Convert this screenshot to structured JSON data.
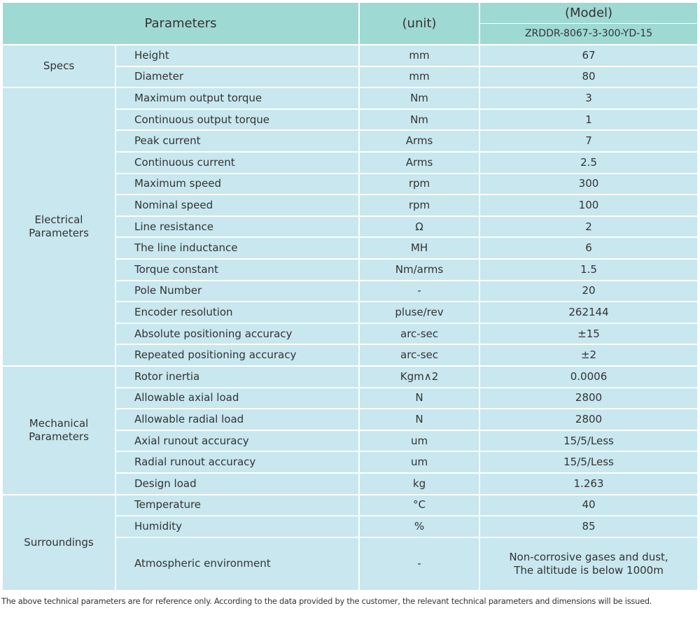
{
  "header": {
    "parameters": "Parameters",
    "unit": "(unit)",
    "model": "(Model)",
    "model_name": "ZRDDR-8067-3-300-YD-15"
  },
  "groups": [
    {
      "name": "Specs",
      "rows": [
        [
          "Height",
          "mm",
          "67"
        ],
        [
          "Diameter",
          "mm",
          "80"
        ]
      ]
    },
    {
      "name": "Electrical\nParameters",
      "rows": [
        [
          "Maximum output torque",
          "Nm",
          "3"
        ],
        [
          "Continuous output torque",
          "Nm",
          "1"
        ],
        [
          "Peak current",
          "Arms",
          "7"
        ],
        [
          "Continuous current",
          "Arms",
          "2.5"
        ],
        [
          "Maximum speed",
          "rpm",
          "300"
        ],
        [
          "Nominal speed",
          "rpm",
          "100"
        ],
        [
          "Line resistance",
          "Ω",
          "2"
        ],
        [
          "The line inductance",
          "MH",
          "6"
        ],
        [
          "Torque constant",
          "Nm/arms",
          "1.5"
        ],
        [
          "Pole Number",
          "-",
          "20"
        ],
        [
          "Encoder resolution",
          "pluse/rev",
          "262144"
        ],
        [
          "Absolute positioning accuracy",
          "arc-sec",
          "±15"
        ],
        [
          "Repeated positioning accuracy",
          "arc-sec",
          "±2"
        ]
      ]
    },
    {
      "name": "Mechanical\nParameters",
      "rows": [
        [
          "Rotor inertia",
          "Kgm∧2",
          "0.0006"
        ],
        [
          "Allowable axial load",
          "N",
          "2800"
        ],
        [
          "Allowable radial load",
          "N",
          "2800"
        ],
        [
          "Axial runout accuracy",
          "um",
          "15/5/Less"
        ],
        [
          "Radial runout accuracy",
          "um",
          "15/5/Less"
        ],
        [
          "Design load",
          "kg",
          "1.263"
        ]
      ]
    },
    {
      "name": "Surroundings",
      "rows": [
        [
          "Temperature",
          "°C",
          "40"
        ],
        [
          "Humidity",
          "%",
          "85"
        ],
        [
          "Atmospheric environment",
          "-",
          "Non-corrosive gases and dust,\nThe altitude is below 1000m"
        ]
      ]
    }
  ],
  "footnote": "The above technical parameters are for reference only. According to the data provided by the customer, the relevant technical parameters and dimensions will be issued."
}
